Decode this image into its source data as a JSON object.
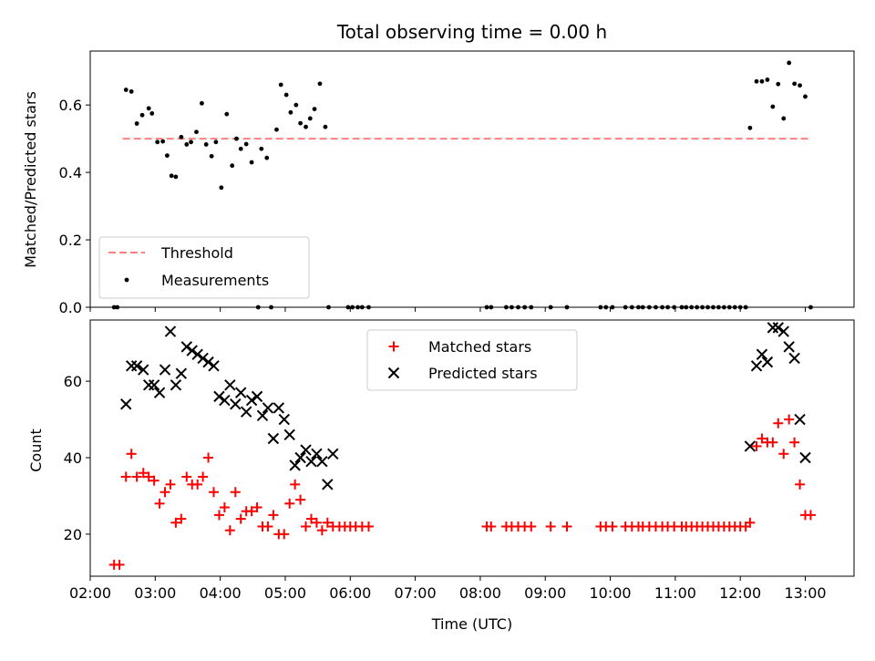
{
  "title": "Total observing time = 0.00 h",
  "colors": {
    "threshold": "#ff7f7f",
    "measurements": "#000000",
    "matched": "#ff0000",
    "predicted": "#000000"
  },
  "chart_data": [
    {
      "type": "scatter",
      "panel": "top",
      "ylabel": "Matched/Predicted stars",
      "xlabel": "",
      "xlim": [
        "02:00",
        "13:45"
      ],
      "ylim": [
        0,
        0.76
      ],
      "yticks": [
        "0.0",
        "0.2",
        "0.4",
        "0.6"
      ],
      "grid": false,
      "legend": {
        "position": "lower-left",
        "entries": [
          "Threshold",
          "Measurements"
        ]
      },
      "threshold": {
        "name": "Threshold",
        "value": 0.5,
        "x_range": [
          "02:30",
          "13:05"
        ]
      },
      "series": [
        {
          "name": "Measurements",
          "marker": "dot",
          "points": [
            [
              "02:22",
              0.0
            ],
            [
              "02:25",
              0.0
            ],
            [
              "02:33",
              0.645
            ],
            [
              "02:38",
              0.64
            ],
            [
              "02:43",
              0.545
            ],
            [
              "02:48",
              0.57
            ],
            [
              "02:54",
              0.59
            ],
            [
              "02:57",
              0.575
            ],
            [
              "03:02",
              0.49
            ],
            [
              "03:07",
              0.492
            ],
            [
              "03:11",
              0.45
            ],
            [
              "03:15",
              0.39
            ],
            [
              "03:19",
              0.387
            ],
            [
              "03:24",
              0.505
            ],
            [
              "03:29",
              0.483
            ],
            [
              "03:33",
              0.49
            ],
            [
              "03:38",
              0.52
            ],
            [
              "03:43",
              0.605
            ],
            [
              "03:47",
              0.483
            ],
            [
              "03:52",
              0.448
            ],
            [
              "03:56",
              0.49
            ],
            [
              "04:01",
              0.355
            ],
            [
              "04:06",
              0.573
            ],
            [
              "04:11",
              0.42
            ],
            [
              "04:15",
              0.5
            ],
            [
              "04:19",
              0.47
            ],
            [
              "04:24",
              0.484
            ],
            [
              "04:29",
              0.43
            ],
            [
              "04:35",
              0.0
            ],
            [
              "04:38",
              0.47
            ],
            [
              "04:43",
              0.443
            ],
            [
              "04:47",
              0.0
            ],
            [
              "04:52",
              0.527
            ],
            [
              "04:56",
              0.66
            ],
            [
              "05:01",
              0.63
            ],
            [
              "05:05",
              0.578
            ],
            [
              "05:10",
              0.6
            ],
            [
              "05:14",
              0.546
            ],
            [
              "05:19",
              0.535
            ],
            [
              "05:23",
              0.56
            ],
            [
              "05:27",
              0.588
            ],
            [
              "05:32",
              0.663
            ],
            [
              "05:37",
              0.535
            ],
            [
              "05:40",
              0.0
            ],
            [
              "05:58",
              0.0
            ],
            [
              "06:02",
              0.0
            ],
            [
              "06:07",
              0.0
            ],
            [
              "06:11",
              0.0
            ],
            [
              "06:17",
              0.0
            ],
            [
              "08:06",
              0.0
            ],
            [
              "08:10",
              0.0
            ],
            [
              "08:24",
              0.0
            ],
            [
              "08:29",
              0.0
            ],
            [
              "08:35",
              0.0
            ],
            [
              "08:41",
              0.0
            ],
            [
              "08:47",
              0.0
            ],
            [
              "09:05",
              0.0
            ],
            [
              "09:20",
              0.0
            ],
            [
              "09:51",
              0.0
            ],
            [
              "09:56",
              0.0
            ],
            [
              "10:02",
              0.0
            ],
            [
              "10:14",
              0.0
            ],
            [
              "10:20",
              0.0
            ],
            [
              "10:26",
              0.0
            ],
            [
              "10:30",
              0.0
            ],
            [
              "10:36",
              0.0
            ],
            [
              "10:42",
              0.0
            ],
            [
              "10:48",
              0.0
            ],
            [
              "10:53",
              0.0
            ],
            [
              "10:59",
              0.0
            ],
            [
              "11:06",
              0.0
            ],
            [
              "11:10",
              0.0
            ],
            [
              "11:15",
              0.0
            ],
            [
              "11:20",
              0.0
            ],
            [
              "11:25",
              0.0
            ],
            [
              "11:30",
              0.0
            ],
            [
              "11:35",
              0.0
            ],
            [
              "11:40",
              0.0
            ],
            [
              "11:45",
              0.0
            ],
            [
              "11:50",
              0.0
            ],
            [
              "11:55",
              0.0
            ],
            [
              "12:00",
              0.0
            ],
            [
              "12:05",
              0.0
            ],
            [
              "12:09",
              0.532
            ],
            [
              "12:15",
              0.67
            ],
            [
              "12:20",
              0.67
            ],
            [
              "12:25",
              0.675
            ],
            [
              "12:30",
              0.595
            ],
            [
              "12:35",
              0.662
            ],
            [
              "12:40",
              0.56
            ],
            [
              "12:45",
              0.725
            ],
            [
              "12:50",
              0.663
            ],
            [
              "12:55",
              0.658
            ],
            [
              "13:00",
              0.625
            ],
            [
              "13:05",
              0.0
            ]
          ]
        }
      ]
    },
    {
      "type": "scatter",
      "panel": "bottom",
      "xlabel": "Time (UTC)",
      "ylabel": "Count",
      "xlim": [
        "02:00",
        "13:45"
      ],
      "ylim": [
        9,
        76
      ],
      "xticks": [
        "02:00",
        "03:00",
        "04:00",
        "05:00",
        "06:00",
        "07:00",
        "08:00",
        "09:00",
        "10:00",
        "11:00",
        "12:00",
        "13:00"
      ],
      "yticks": [
        "20",
        "40",
        "60"
      ],
      "grid": false,
      "legend": {
        "position": "upper-center",
        "entries": [
          "Matched stars",
          "Predicted stars"
        ]
      },
      "series": [
        {
          "name": "Matched stars",
          "marker": "plus",
          "points": [
            [
              "02:22",
              12
            ],
            [
              "02:27",
              12
            ],
            [
              "02:33",
              35
            ],
            [
              "02:38",
              41
            ],
            [
              "02:43",
              35
            ],
            [
              "02:49",
              36
            ],
            [
              "02:54",
              35
            ],
            [
              "02:59",
              34
            ],
            [
              "03:04",
              28
            ],
            [
              "03:09",
              31
            ],
            [
              "03:14",
              33
            ],
            [
              "03:19",
              23
            ],
            [
              "03:24",
              24
            ],
            [
              "03:29",
              35
            ],
            [
              "03:34",
              33
            ],
            [
              "03:39",
              33
            ],
            [
              "03:44",
              35
            ],
            [
              "03:49",
              40
            ],
            [
              "03:54",
              31
            ],
            [
              "03:59",
              25
            ],
            [
              "04:04",
              27
            ],
            [
              "04:09",
              21
            ],
            [
              "04:14",
              31
            ],
            [
              "04:19",
              24
            ],
            [
              "04:24",
              26
            ],
            [
              "04:29",
              26
            ],
            [
              "04:34",
              27
            ],
            [
              "04:39",
              22
            ],
            [
              "04:44",
              22
            ],
            [
              "04:49",
              25
            ],
            [
              "04:54",
              20
            ],
            [
              "04:59",
              20
            ],
            [
              "05:04",
              28
            ],
            [
              "05:09",
              33
            ],
            [
              "05:14",
              29
            ],
            [
              "05:19",
              22
            ],
            [
              "05:24",
              24
            ],
            [
              "05:29",
              23
            ],
            [
              "05:34",
              21
            ],
            [
              "05:39",
              23
            ],
            [
              "05:44",
              22
            ],
            [
              "05:50",
              22
            ],
            [
              "05:55",
              22
            ],
            [
              "06:00",
              22
            ],
            [
              "06:05",
              22
            ],
            [
              "06:11",
              22
            ],
            [
              "06:17",
              22
            ],
            [
              "08:06",
              22
            ],
            [
              "08:10",
              22
            ],
            [
              "08:24",
              22
            ],
            [
              "08:29",
              22
            ],
            [
              "08:35",
              22
            ],
            [
              "08:41",
              22
            ],
            [
              "08:47",
              22
            ],
            [
              "09:05",
              22
            ],
            [
              "09:20",
              22
            ],
            [
              "09:51",
              22
            ],
            [
              "09:56",
              22
            ],
            [
              "10:02",
              22
            ],
            [
              "10:14",
              22
            ],
            [
              "10:20",
              22
            ],
            [
              "10:26",
              22
            ],
            [
              "10:30",
              22
            ],
            [
              "10:36",
              22
            ],
            [
              "10:42",
              22
            ],
            [
              "10:48",
              22
            ],
            [
              "10:53",
              22
            ],
            [
              "10:59",
              22
            ],
            [
              "11:06",
              22
            ],
            [
              "11:10",
              22
            ],
            [
              "11:15",
              22
            ],
            [
              "11:20",
              22
            ],
            [
              "11:25",
              22
            ],
            [
              "11:30",
              22
            ],
            [
              "11:35",
              22
            ],
            [
              "11:40",
              22
            ],
            [
              "11:45",
              22
            ],
            [
              "11:50",
              22
            ],
            [
              "11:55",
              22
            ],
            [
              "12:00",
              22
            ],
            [
              "12:05",
              22
            ],
            [
              "12:09",
              23
            ],
            [
              "12:15",
              43
            ],
            [
              "12:20",
              45
            ],
            [
              "12:25",
              44
            ],
            [
              "12:30",
              44
            ],
            [
              "12:35",
              49
            ],
            [
              "12:40",
              41
            ],
            [
              "12:45",
              50
            ],
            [
              "12:50",
              44
            ],
            [
              "12:55",
              33
            ],
            [
              "13:00",
              25
            ],
            [
              "13:05",
              25
            ]
          ]
        },
        {
          "name": "Predicted stars",
          "marker": "x",
          "points": [
            [
              "02:33",
              54
            ],
            [
              "02:38",
              64
            ],
            [
              "02:43",
              64
            ],
            [
              "02:49",
              63
            ],
            [
              "02:54",
              59
            ],
            [
              "02:59",
              59
            ],
            [
              "03:04",
              57
            ],
            [
              "03:09",
              63
            ],
            [
              "03:14",
              73
            ],
            [
              "03:19",
              59
            ],
            [
              "03:24",
              62
            ],
            [
              "03:29",
              69
            ],
            [
              "03:34",
              68
            ],
            [
              "03:39",
              67
            ],
            [
              "03:44",
              66
            ],
            [
              "03:49",
              65
            ],
            [
              "03:54",
              64
            ],
            [
              "03:59",
              56
            ],
            [
              "04:04",
              55
            ],
            [
              "04:09",
              59
            ],
            [
              "04:14",
              54
            ],
            [
              "04:19",
              57
            ],
            [
              "04:24",
              52
            ],
            [
              "04:29",
              55
            ],
            [
              "04:34",
              56
            ],
            [
              "04:39",
              51
            ],
            [
              "04:44",
              53
            ],
            [
              "04:49",
              45
            ],
            [
              "04:54",
              53
            ],
            [
              "04:59",
              50
            ],
            [
              "05:04",
              46
            ],
            [
              "05:09",
              38
            ],
            [
              "05:14",
              40
            ],
            [
              "05:19",
              42
            ],
            [
              "05:24",
              39
            ],
            [
              "05:29",
              41
            ],
            [
              "05:34",
              39
            ],
            [
              "05:39",
              33
            ],
            [
              "05:44",
              41
            ],
            [
              "12:09",
              43
            ],
            [
              "12:15",
              64
            ],
            [
              "12:20",
              67
            ],
            [
              "12:25",
              65
            ],
            [
              "12:30",
              74
            ],
            [
              "12:35",
              74
            ],
            [
              "12:40",
              73
            ],
            [
              "12:45",
              69
            ],
            [
              "12:50",
              66
            ],
            [
              "12:55",
              50
            ],
            [
              "13:00",
              40
            ]
          ]
        }
      ]
    }
  ]
}
